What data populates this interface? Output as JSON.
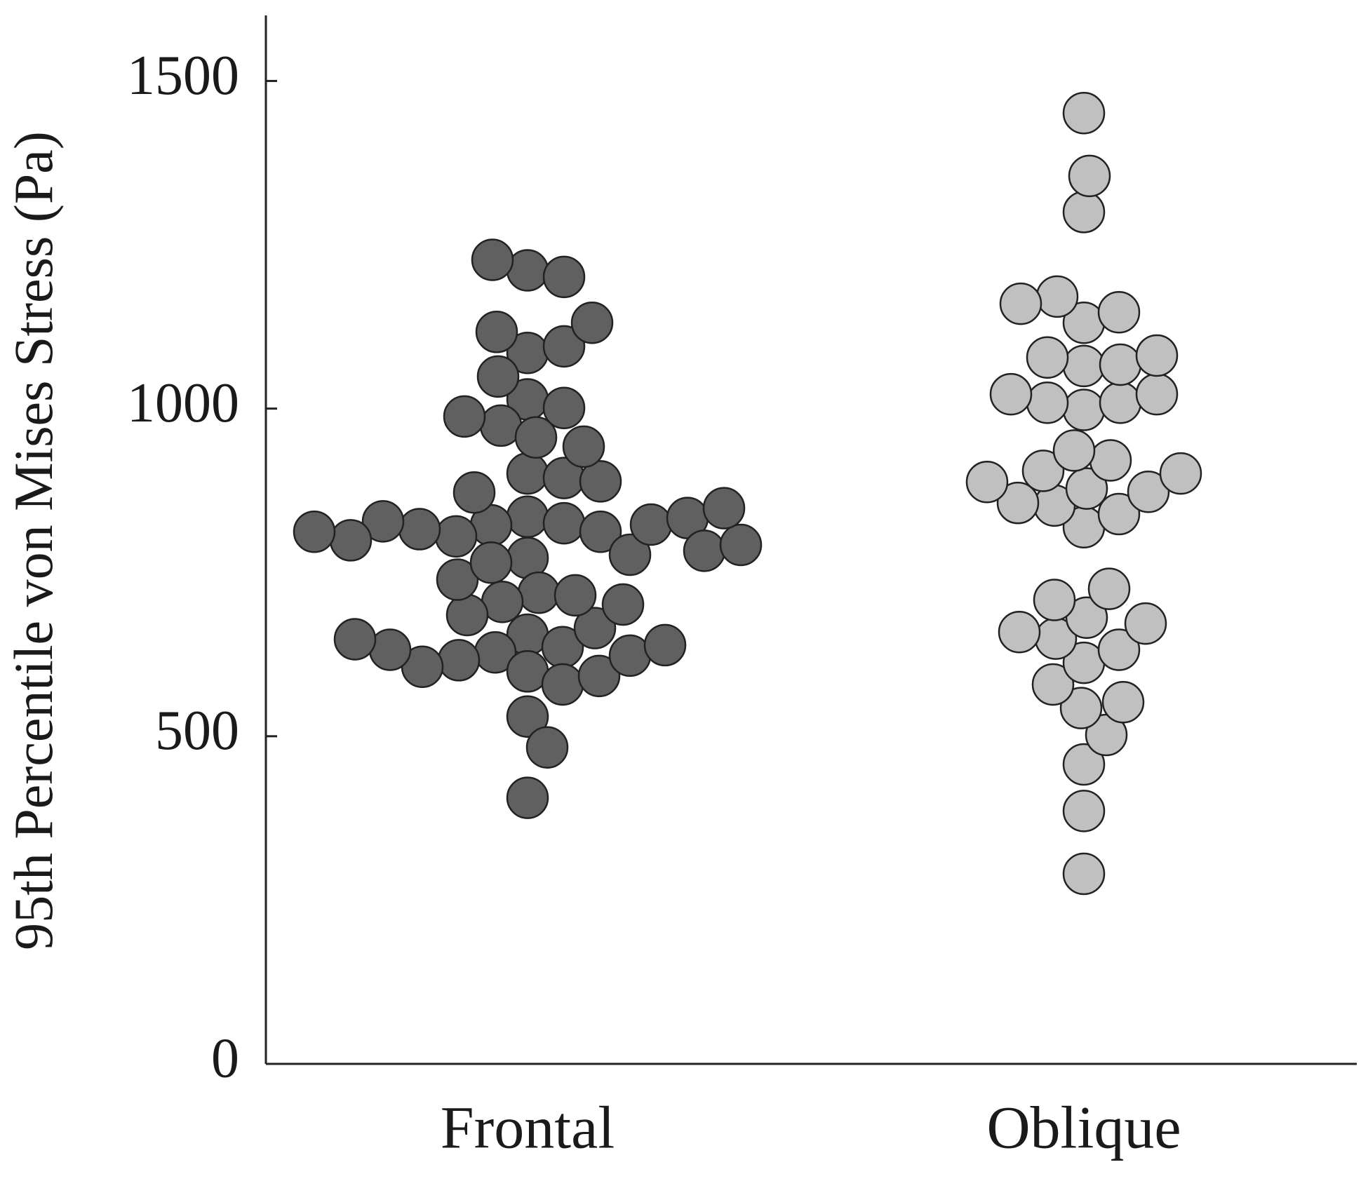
{
  "chart_data": {
    "type": "swarm",
    "ylabel": "95th Percentile von Mises Stress (Pa)",
    "ylim": [
      0,
      1600
    ],
    "yticks": [
      0,
      500,
      1000,
      1500
    ],
    "series": [
      {
        "name": "Frontal",
        "color": "#606060",
        "values": [
          835,
          825,
          822,
          812,
          805,
          772,
          655,
          636,
          628,
          616,
          599,
          579,
          530,
          483,
          406,
          592,
          606,
          623,
          632,
          639,
          665,
          719,
          705,
          685,
          648,
          701,
          715,
          739,
          777,
          816,
          823,
          828,
          833,
          799,
          783,
          765,
          792,
          812,
          901,
          894,
          872,
          848,
          889,
          1014,
          1001,
          974,
          942,
          988,
          956,
          1085,
          1049,
          1095,
          1117,
          1131,
          1211,
          1201,
          1227
        ]
      },
      {
        "name": "Oblique",
        "color": "#c0c0c0",
        "values": [
          290,
          386,
          457,
          502,
          543,
          552,
          579,
          612,
          632,
          649,
          659,
          681,
          672,
          708,
          725,
          819,
          839,
          852,
          856,
          873,
          878,
          888,
          901,
          905,
          921,
          936,
          998,
          1009,
          1009,
          1022,
          1022,
          1065,
          1067,
          1078,
          1081,
          1131,
          1147,
          1171,
          1160,
          1300,
          1355,
          1451
        ]
      }
    ]
  }
}
